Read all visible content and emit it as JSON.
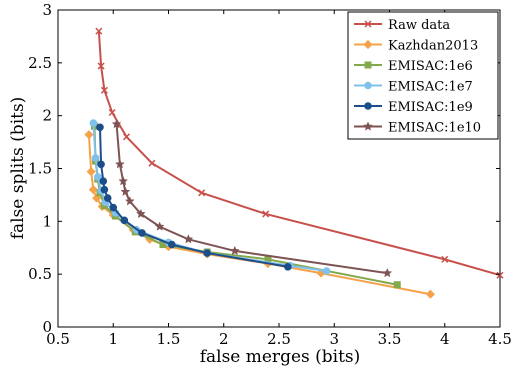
{
  "chart_data": {
    "type": "line",
    "title": "",
    "xlabel": "false merges (bits)",
    "ylabel": "false splits (bits)",
    "xlim": [
      0.5,
      4.5
    ],
    "ylim": [
      0,
      3
    ],
    "xticks": [
      "0.5",
      "1",
      "1.5",
      "2",
      "2.5",
      "3",
      "3.5",
      "4",
      "4.5"
    ],
    "yticks": [
      "0",
      "0.5",
      "1",
      "1.5",
      "2",
      "2.5",
      "3"
    ],
    "grid": false,
    "legend_position": "top-right",
    "series": [
      {
        "name": "Raw data",
        "color": "#c8504b",
        "marker": "x",
        "x": [
          0.87,
          0.89,
          0.92,
          0.99,
          1.12,
          1.35,
          1.8,
          2.38,
          4.0,
          4.5
        ],
        "y": [
          2.8,
          2.47,
          2.24,
          2.03,
          1.8,
          1.55,
          1.27,
          1.07,
          0.64,
          0.49
        ]
      },
      {
        "name": "Kazhdan2013",
        "color": "#f5a24a",
        "marker": "diamond",
        "x": [
          0.78,
          0.8,
          0.82,
          0.85,
          0.9,
          1.0,
          1.18,
          1.33,
          1.5,
          1.85,
          2.4,
          2.88,
          3.87
        ],
        "y": [
          1.82,
          1.47,
          1.3,
          1.22,
          1.14,
          1.06,
          0.92,
          0.83,
          0.76,
          0.69,
          0.6,
          0.51,
          0.31
        ]
      },
      {
        "name": "EMISAC:1e6",
        "color": "#84a84c",
        "marker": "square",
        "x": [
          0.83,
          0.84,
          0.86,
          0.88,
          0.92,
          1.02,
          1.2,
          1.45,
          1.85,
          2.4,
          3.57
        ],
        "y": [
          1.9,
          1.57,
          1.4,
          1.27,
          1.15,
          1.05,
          0.9,
          0.78,
          0.71,
          0.64,
          0.4
        ]
      },
      {
        "name": "EMISAC:1e7",
        "color": "#7fc0ec",
        "marker": "circle",
        "x": [
          0.82,
          0.84,
          0.86,
          0.89,
          0.93,
          1.02,
          1.21,
          1.5,
          1.85,
          2.6,
          2.93
        ],
        "y": [
          1.93,
          1.6,
          1.42,
          1.29,
          1.18,
          1.08,
          0.92,
          0.8,
          0.7,
          0.58,
          0.53
        ]
      },
      {
        "name": "EMISAC:1e9",
        "color": "#1d4e8a",
        "marker": "circle",
        "x": [
          0.88,
          0.89,
          0.91,
          0.92,
          0.95,
          1.0,
          1.1,
          1.26,
          1.53,
          1.85,
          2.58
        ],
        "y": [
          1.89,
          1.54,
          1.38,
          1.3,
          1.22,
          1.13,
          1.01,
          0.89,
          0.78,
          0.7,
          0.57
        ]
      },
      {
        "name": "EMISAC:1e10",
        "color": "#7e5353",
        "marker": "star",
        "x": [
          1.03,
          1.06,
          1.09,
          1.11,
          1.15,
          1.25,
          1.42,
          1.68,
          2.1,
          3.48
        ],
        "y": [
          1.92,
          1.54,
          1.38,
          1.28,
          1.19,
          1.07,
          0.95,
          0.83,
          0.72,
          0.51
        ]
      }
    ]
  }
}
